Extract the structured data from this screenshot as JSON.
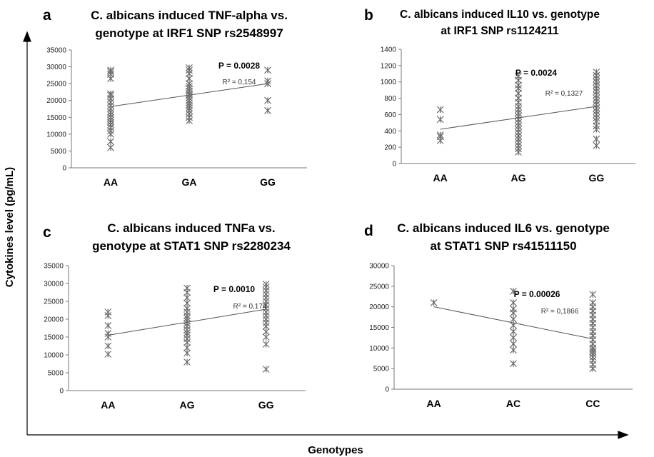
{
  "figure": {
    "y_axis_label": "Cytokines level (pg/mL)",
    "x_axis_label": "Genotypes"
  },
  "chart_data": [
    {
      "type": "scatter",
      "panel": "a",
      "title_lines": [
        "C. albicans induced TNF-alpha vs.",
        "genotype at IRF1 SNP rs2548997"
      ],
      "categories": [
        "AA",
        "GA",
        "GG"
      ],
      "ylim": [
        0,
        35000
      ],
      "yticks": [
        0,
        5000,
        10000,
        15000,
        20000,
        25000,
        30000,
        35000
      ],
      "p_value": "P = 0.0028",
      "r2": "R² = 0,154",
      "trendline": [
        18200,
        25000
      ],
      "points": {
        "AA": [
          6000,
          7800,
          10000,
          11000,
          12000,
          12800,
          13500,
          14200,
          15000,
          15800,
          16500,
          17500,
          18500,
          19500,
          20500,
          21500,
          22000,
          26500,
          27800,
          28500,
          29000
        ],
        "GA": [
          14000,
          15000,
          16000,
          17000,
          17800,
          18500,
          19200,
          20000,
          20800,
          21500,
          22000,
          22800,
          23500,
          24200,
          25000,
          26500,
          28000,
          29000,
          29700
        ],
        "GG": [
          17000,
          20000,
          25000,
          25800,
          29000
        ]
      }
    },
    {
      "type": "scatter",
      "panel": "b",
      "title_lines": [
        "C. albicans induced IL10 vs. genotype",
        "at IRF1 SNP rs1124211"
      ],
      "categories": [
        "AA",
        "AG",
        "GG"
      ],
      "ylim": [
        0,
        1400
      ],
      "yticks": [
        0,
        200,
        400,
        600,
        800,
        1000,
        1200,
        1400
      ],
      "p_value": "P = 0.0024",
      "r2": "R² = 0,1327",
      "trendline": [
        420,
        700
      ],
      "points": {
        "AA": [
          280,
          330,
          350,
          540,
          660
        ],
        "AG": [
          140,
          180,
          220,
          260,
          300,
          340,
          380,
          420,
          460,
          500,
          540,
          580,
          620,
          660,
          700,
          750,
          800,
          860,
          920,
          960,
          1020,
          1070
        ],
        "GG": [
          220,
          300,
          420,
          460,
          520,
          560,
          600,
          640,
          680,
          720,
          760,
          800,
          840,
          880,
          920,
          960,
          1000,
          1040,
          1080,
          1120
        ]
      }
    },
    {
      "type": "scatter",
      "panel": "c",
      "title_lines": [
        "C. albicans induced TNFa vs.",
        "genotype at STAT1 SNP rs2280234"
      ],
      "categories": [
        "AA",
        "AG",
        "GG"
      ],
      "ylim": [
        0,
        35000
      ],
      "yticks": [
        0,
        5000,
        10000,
        15000,
        20000,
        25000,
        30000,
        35000
      ],
      "p_value": "P = 0.0010",
      "r2": "R² = 0,174",
      "trendline": [
        15500,
        22800
      ],
      "points": {
        "AA": [
          10200,
          12500,
          15000,
          16000,
          18200,
          21000,
          22000
        ],
        "AG": [
          8000,
          10500,
          12000,
          13500,
          14500,
          15500,
          16200,
          17000,
          18000,
          18800,
          19500,
          20300,
          21000,
          22000,
          23000,
          24500,
          26000,
          27500,
          28700
        ],
        "GG": [
          6000,
          13000,
          15000,
          16500,
          18000,
          19000,
          20000,
          21000,
          22000,
          23000,
          24000,
          25000,
          26000,
          27000,
          28000,
          29000,
          29800
        ]
      }
    },
    {
      "type": "scatter",
      "panel": "d",
      "title_lines": [
        "C. albicans induced IL6 vs. genotype",
        "at STAT1 SNP rs41511150"
      ],
      "categories": [
        "AA",
        "AC",
        "CC"
      ],
      "ylim": [
        0,
        30000
      ],
      "yticks": [
        0,
        5000,
        10000,
        15000,
        20000,
        25000,
        30000
      ],
      "p_value": "P = 0.00026",
      "r2": "R² = 0,1866",
      "trendline": [
        20000,
        12200
      ],
      "points": {
        "AA": [
          21000
        ],
        "AC": [
          6200,
          9500,
          11000,
          12500,
          14000,
          15500,
          17000,
          18500,
          19500,
          21000,
          23800
        ],
        "CC": [
          5000,
          6000,
          7000,
          7800,
          8500,
          9000,
          9500,
          10000,
          11000,
          12000,
          13000,
          14000,
          15000,
          16000,
          17000,
          18000,
          19000,
          20000,
          21000,
          23000
        ]
      }
    }
  ]
}
